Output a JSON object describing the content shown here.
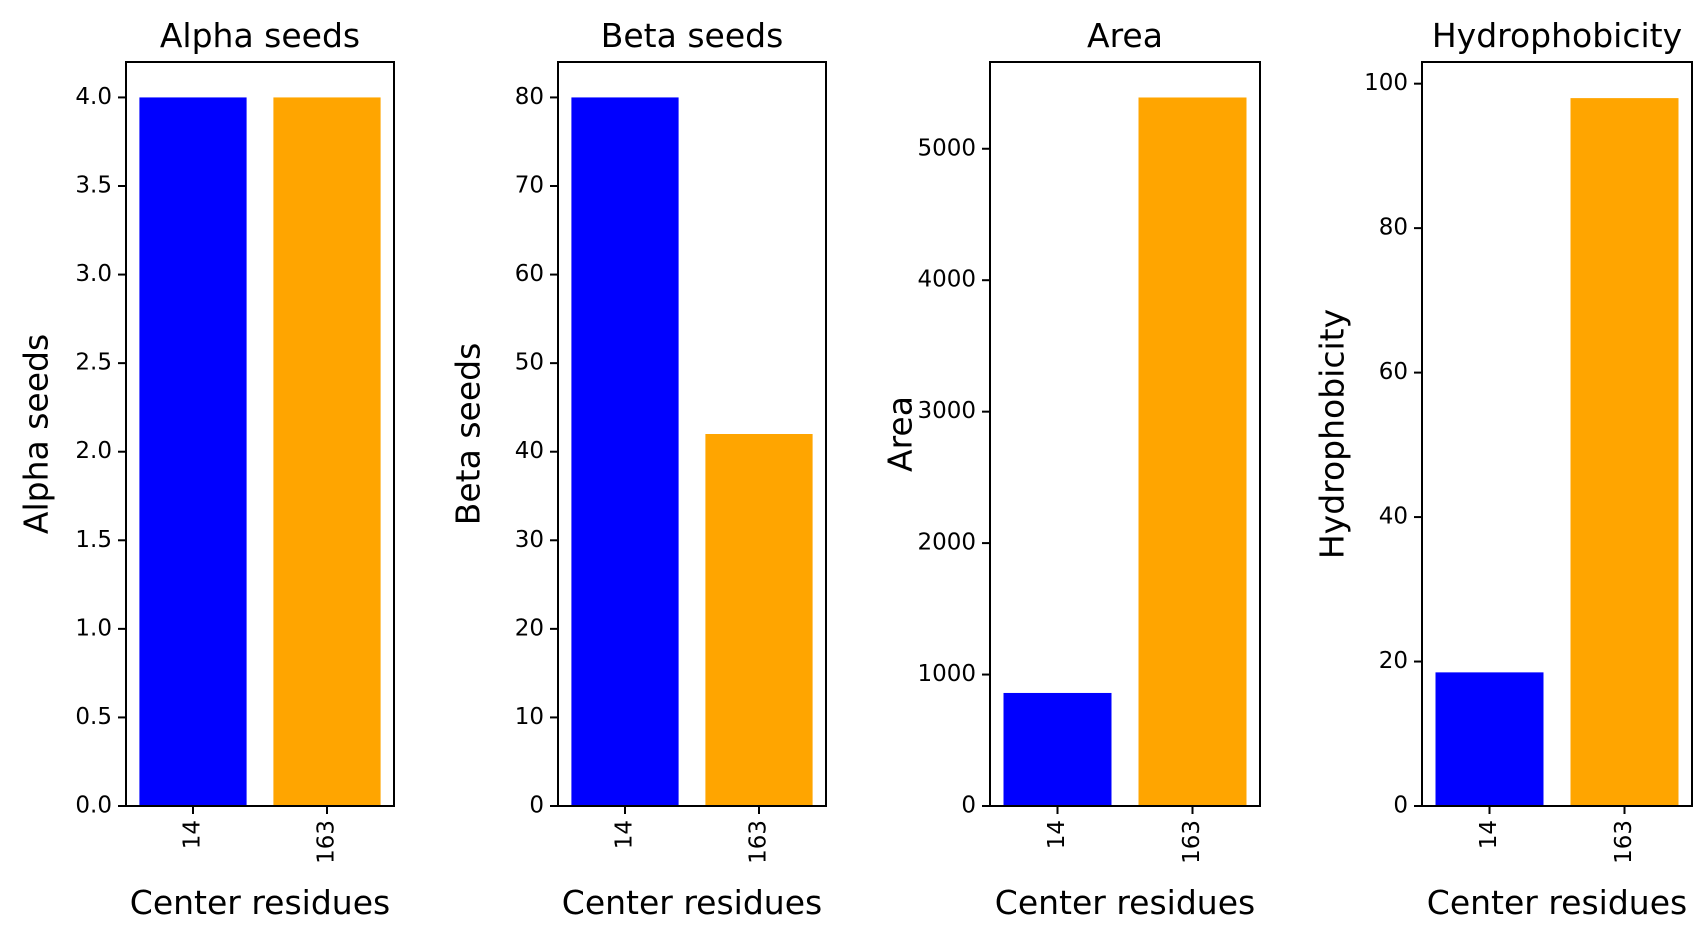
{
  "chart_data": [
    {
      "type": "bar",
      "title": "Alpha seeds",
      "xlabel": "Center residues",
      "ylabel": "Alpha seeds",
      "categories": [
        "14",
        "163"
      ],
      "values": [
        4.0,
        4.0
      ],
      "colors": [
        "#0000ff",
        "#ffa500"
      ],
      "ylim": [
        0,
        4.2
      ],
      "yticks": [
        0.0,
        0.5,
        1.0,
        1.5,
        2.0,
        2.5,
        3.0,
        3.5,
        4.0
      ],
      "ytick_labels": [
        "0.0",
        "0.5",
        "1.0",
        "1.5",
        "2.0",
        "2.5",
        "3.0",
        "3.5",
        "4.0"
      ],
      "grid": false,
      "xtick_rotation": "vertical"
    },
    {
      "type": "bar",
      "title": "Beta seeds",
      "xlabel": "Center residues",
      "ylabel": "Beta seeds",
      "categories": [
        "14",
        "163"
      ],
      "values": [
        80,
        42
      ],
      "colors": [
        "#0000ff",
        "#ffa500"
      ],
      "ylim": [
        0,
        84
      ],
      "yticks": [
        0,
        10,
        20,
        30,
        40,
        50,
        60,
        70,
        80
      ],
      "ytick_labels": [
        "0",
        "10",
        "20",
        "30",
        "40",
        "50",
        "60",
        "70",
        "80"
      ],
      "grid": false,
      "xtick_rotation": "vertical"
    },
    {
      "type": "bar",
      "title": "Area",
      "xlabel": "Center residues",
      "ylabel": "Area",
      "categories": [
        "14",
        "163"
      ],
      "values": [
        860,
        5390
      ],
      "colors": [
        "#0000ff",
        "#ffa500"
      ],
      "ylim": [
        0,
        5660
      ],
      "yticks": [
        0,
        1000,
        2000,
        3000,
        4000,
        5000
      ],
      "ytick_labels": [
        "0",
        "1000",
        "2000",
        "3000",
        "4000",
        "5000"
      ],
      "grid": false,
      "xtick_rotation": "vertical"
    },
    {
      "type": "bar",
      "title": "Hydrophobicity",
      "xlabel": "Center residues",
      "ylabel": "Hydrophobicity",
      "categories": [
        "14",
        "163"
      ],
      "values": [
        18.5,
        98
      ],
      "colors": [
        "#0000ff",
        "#ffa500"
      ],
      "ylim": [
        0,
        103
      ],
      "yticks": [
        0,
        20,
        40,
        60,
        80,
        100
      ],
      "ytick_labels": [
        "0",
        "20",
        "40",
        "60",
        "80",
        "100"
      ],
      "grid": false,
      "xtick_rotation": "vertical"
    }
  ]
}
